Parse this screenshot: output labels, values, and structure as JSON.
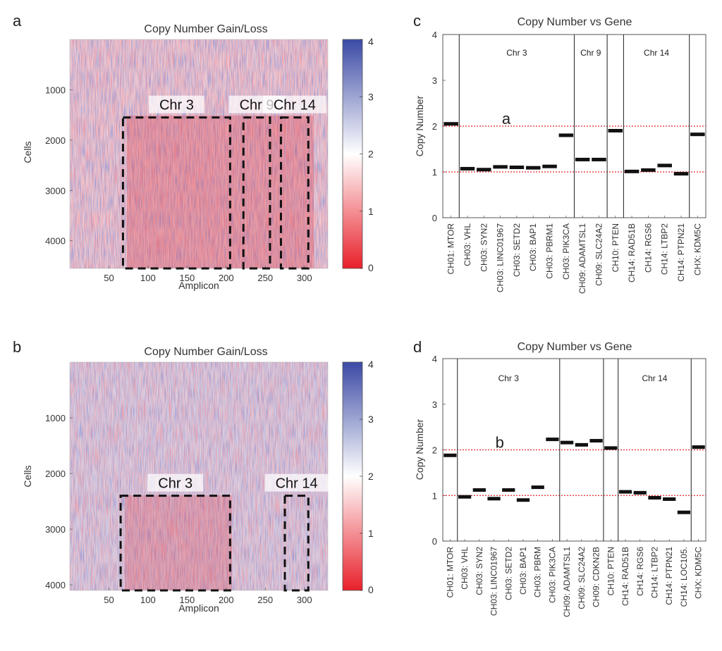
{
  "panels": {
    "a": "a",
    "b": "b",
    "c": "c",
    "d": "d"
  },
  "chart_data": [
    {
      "id": "a",
      "type": "heatmap",
      "title": "Copy Number Gain/Loss",
      "xlabel": "Amplicon",
      "ylabel": "Cells",
      "xlim": [
        0,
        330
      ],
      "ylim": [
        0,
        4550
      ],
      "y_reversed": true,
      "x_ticks": [
        50,
        100,
        150,
        200,
        250,
        300
      ],
      "y_ticks": [
        1000,
        2000,
        3000,
        4000
      ],
      "colorbar": {
        "range": [
          0,
          4
        ],
        "ticks": [
          0,
          1,
          2,
          3,
          4
        ],
        "low_color": "#e8202a",
        "mid_color": "#ffffff",
        "high_color": "#3b4aa5"
      },
      "regions": [
        {
          "label": "Chr 3",
          "x": [
            68,
            205
          ],
          "y": [
            1550,
            4550
          ]
        },
        {
          "label": "Chr 9",
          "x": [
            222,
            256
          ],
          "y": [
            1550,
            4550
          ]
        },
        {
          "label": "Chr 14",
          "x": [
            270,
            305
          ],
          "y": [
            1550,
            4550
          ]
        }
      ]
    },
    {
      "id": "b",
      "type": "heatmap",
      "title": "Copy Number Gain/Loss",
      "xlabel": "Amplicon",
      "ylabel": "Cells",
      "xlim": [
        0,
        330
      ],
      "ylim": [
        0,
        4100
      ],
      "y_reversed": true,
      "x_ticks": [
        50,
        100,
        150,
        200,
        250,
        300
      ],
      "y_ticks": [
        1000,
        2000,
        3000,
        4000
      ],
      "colorbar": {
        "range": [
          0,
          4
        ],
        "ticks": [
          0,
          1,
          2,
          3,
          4
        ],
        "low_color": "#e8202a",
        "mid_color": "#ffffff",
        "high_color": "#3b4aa5"
      },
      "regions": [
        {
          "label": "Chr 3",
          "x": [
            65,
            205
          ],
          "y": [
            2400,
            4100
          ]
        },
        {
          "label": "Chr 14",
          "x": [
            275,
            305
          ],
          "y": [
            2400,
            4100
          ]
        }
      ]
    },
    {
      "id": "c",
      "type": "scatter",
      "title": "Copy Number vs Gene",
      "ylabel": "Copy Number",
      "ylim": [
        0,
        4
      ],
      "y_ticks": [
        0,
        1,
        2,
        3,
        4
      ],
      "reference_lines": [
        1,
        2
      ],
      "annotation": "a",
      "categories": [
        "CH01: MTOR",
        "CH03: VHL",
        "CH03: SYN2",
        "CH03: LINC01967",
        "CH03: SETD2",
        "CH03: BAP1",
        "CH03: PBRM1",
        "CH03: PIK3CA",
        "CH09: ADAMTSL1",
        "CH09: SLC24A2",
        "CH10: PTEN",
        "CH14: RAD51B",
        "CH14: RGS6",
        "CH14: LTBP2",
        "CH14: PTPN21",
        "CHX: KDM5C"
      ],
      "values": [
        2.05,
        1.07,
        1.05,
        1.11,
        1.1,
        1.09,
        1.12,
        1.8,
        1.27,
        1.27,
        1.9,
        1.01,
        1.04,
        1.14,
        0.96,
        1.82
      ],
      "separators_after": [
        "CH01: MTOR",
        "CH03: PIK3CA",
        "CH09: SLC24A2",
        "CH10: PTEN",
        "CH14: PTPN21"
      ],
      "segments": [
        {
          "label": "Chr 3",
          "from": "CH03: VHL",
          "to": "CH03: PIK3CA"
        },
        {
          "label": "Chr 9",
          "from": "CH09: ADAMTSL1",
          "to": "CH09: SLC24A2"
        },
        {
          "label": "Chr 14",
          "from": "CH14: RAD51B",
          "to": "CH14: PTPN21"
        }
      ]
    },
    {
      "id": "d",
      "type": "scatter",
      "title": "Copy Number vs Gene",
      "ylabel": "Copy Number",
      "ylim": [
        0,
        4
      ],
      "y_ticks": [
        0,
        1,
        2,
        3,
        4
      ],
      "reference_lines": [
        1,
        2
      ],
      "annotation": "b",
      "categories": [
        "CH01: MTOR",
        "CH03: VHL",
        "CH03: SYN2",
        "CH03: LINC01967",
        "CH03: SETD2",
        "CH03: BAP1",
        "CH03: PBRM",
        "CH03: PIK3CA",
        "CH09: ADAMTSL1",
        "CH09: SLC24A2",
        "CH09: CDKN2B",
        "CH10: PTEN",
        "CH14: RAD51B",
        "CH14: RGS6",
        "CH14: LTBP2",
        "CH14: PTPN21",
        "CH14: LOC105.",
        "CHX: KDM5C"
      ],
      "values": [
        1.88,
        0.97,
        1.12,
        0.93,
        1.12,
        0.9,
        1.18,
        2.23,
        2.16,
        2.11,
        2.2,
        2.04,
        1.08,
        1.06,
        0.95,
        0.92,
        0.63,
        2.06
      ],
      "separators_after": [
        "CH01: MTOR",
        "CH03: PIK3CA",
        "CH09: CDKN2B",
        "CH10: PTEN",
        "CH14: LOC105."
      ],
      "segments": [
        {
          "label": "Chr 3",
          "from": "CH03: VHL",
          "to": "CH03: PIK3CA"
        },
        {
          "label": "Chr 14",
          "from": "CH14: RAD51B",
          "to": "CH14: LOC105."
        }
      ]
    }
  ]
}
